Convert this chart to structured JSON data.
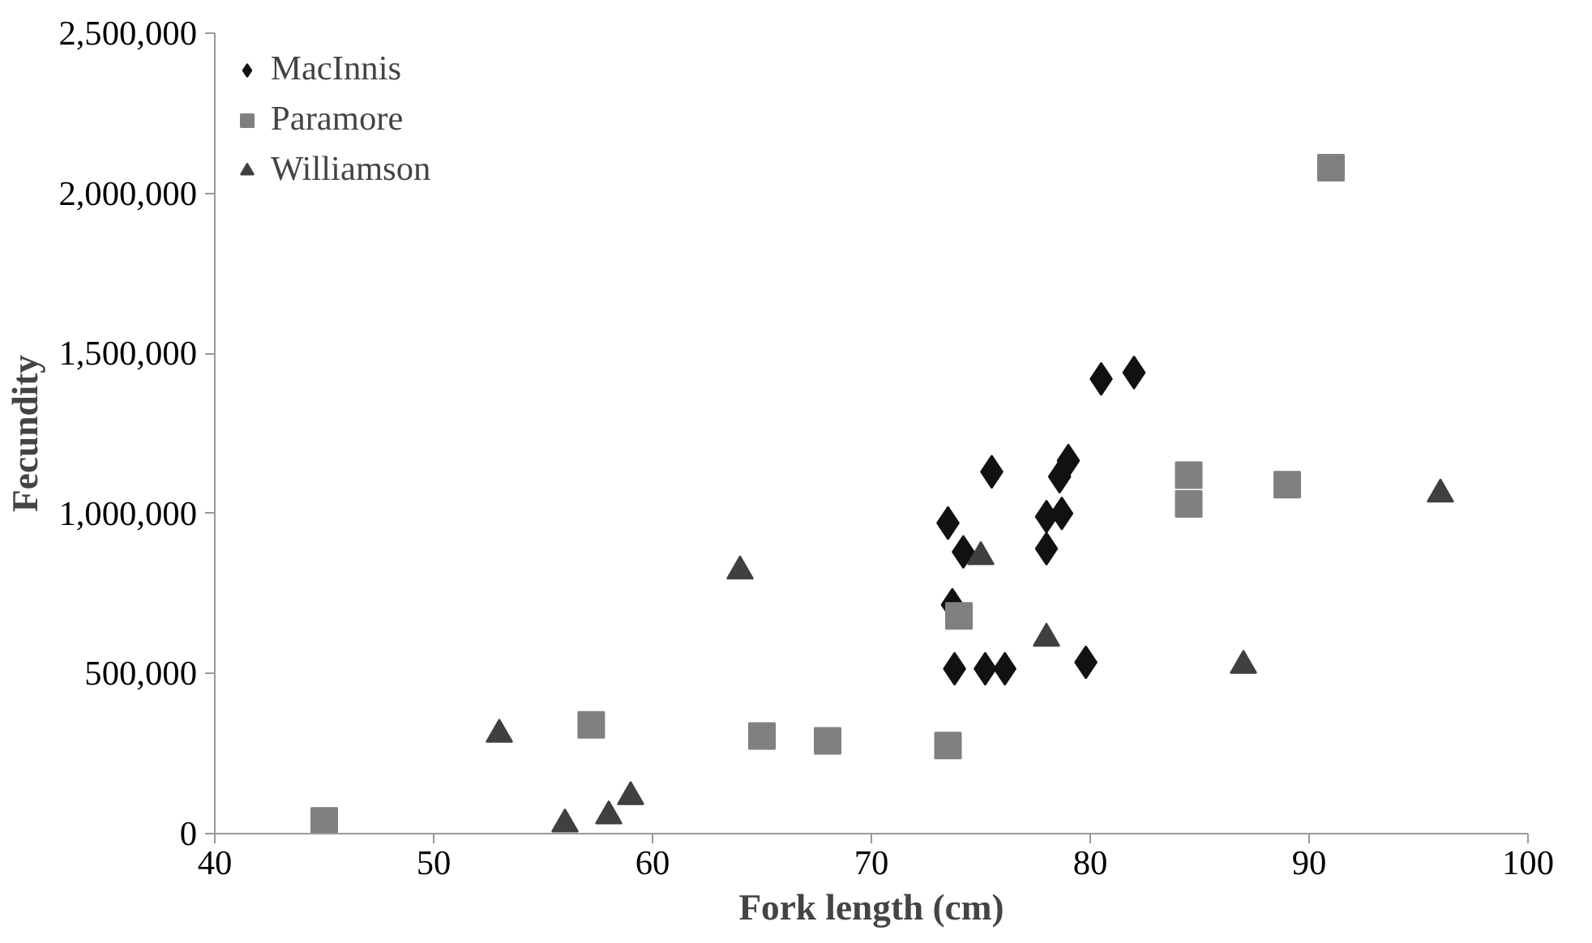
{
  "chart_data": {
    "type": "scatter",
    "xlabel": "Fork length (cm)",
    "ylabel": "Fecundity",
    "xlim": [
      40,
      100
    ],
    "xticks": [
      40,
      50,
      60,
      70,
      80,
      90,
      100
    ],
    "ylim": [
      0,
      2500000
    ],
    "yticks": [
      {
        "value": 0,
        "label": "0"
      },
      {
        "value": 500000,
        "label": "500,000"
      },
      {
        "value": 1000000,
        "label": "1,000,000"
      },
      {
        "value": 1500000,
        "label": "1,500,000"
      },
      {
        "value": 2000000,
        "label": "2,000,000"
      },
      {
        "value": 2500000,
        "label": "2,500,000"
      }
    ],
    "grid": false,
    "legend": "top left",
    "series": [
      {
        "name": "MacInnis",
        "color": "#111111",
        "marker": "diamond",
        "x": [
          73.5,
          74.2,
          73.7,
          73.8,
          75.2,
          76.1,
          75.5,
          78.0,
          78.7,
          78.0,
          78.6,
          79.0,
          80.5,
          82.0,
          79.8
        ],
        "values": [
          970000,
          880000,
          715000,
          515000,
          515000,
          515000,
          1130000,
          990000,
          1000000,
          890000,
          1115000,
          1165000,
          1420000,
          1440000,
          535000
        ]
      },
      {
        "name": "Paramore",
        "color": "#808080",
        "marker": "square",
        "x": [
          45,
          57.2,
          65,
          68,
          73.5,
          74,
          84.5,
          84.5,
          89,
          91
        ],
        "values": [
          40000,
          340000,
          305000,
          290000,
          275000,
          680000,
          1120000,
          1030000,
          1090000,
          2080000
        ]
      },
      {
        "name": "Williamson",
        "color": "#404040",
        "marker": "triangle",
        "x": [
          53,
          56,
          58,
          59,
          64,
          75,
          78,
          87,
          96
        ],
        "values": [
          310000,
          30000,
          55000,
          115000,
          820000,
          865000,
          610000,
          525000,
          1060000
        ]
      }
    ]
  }
}
